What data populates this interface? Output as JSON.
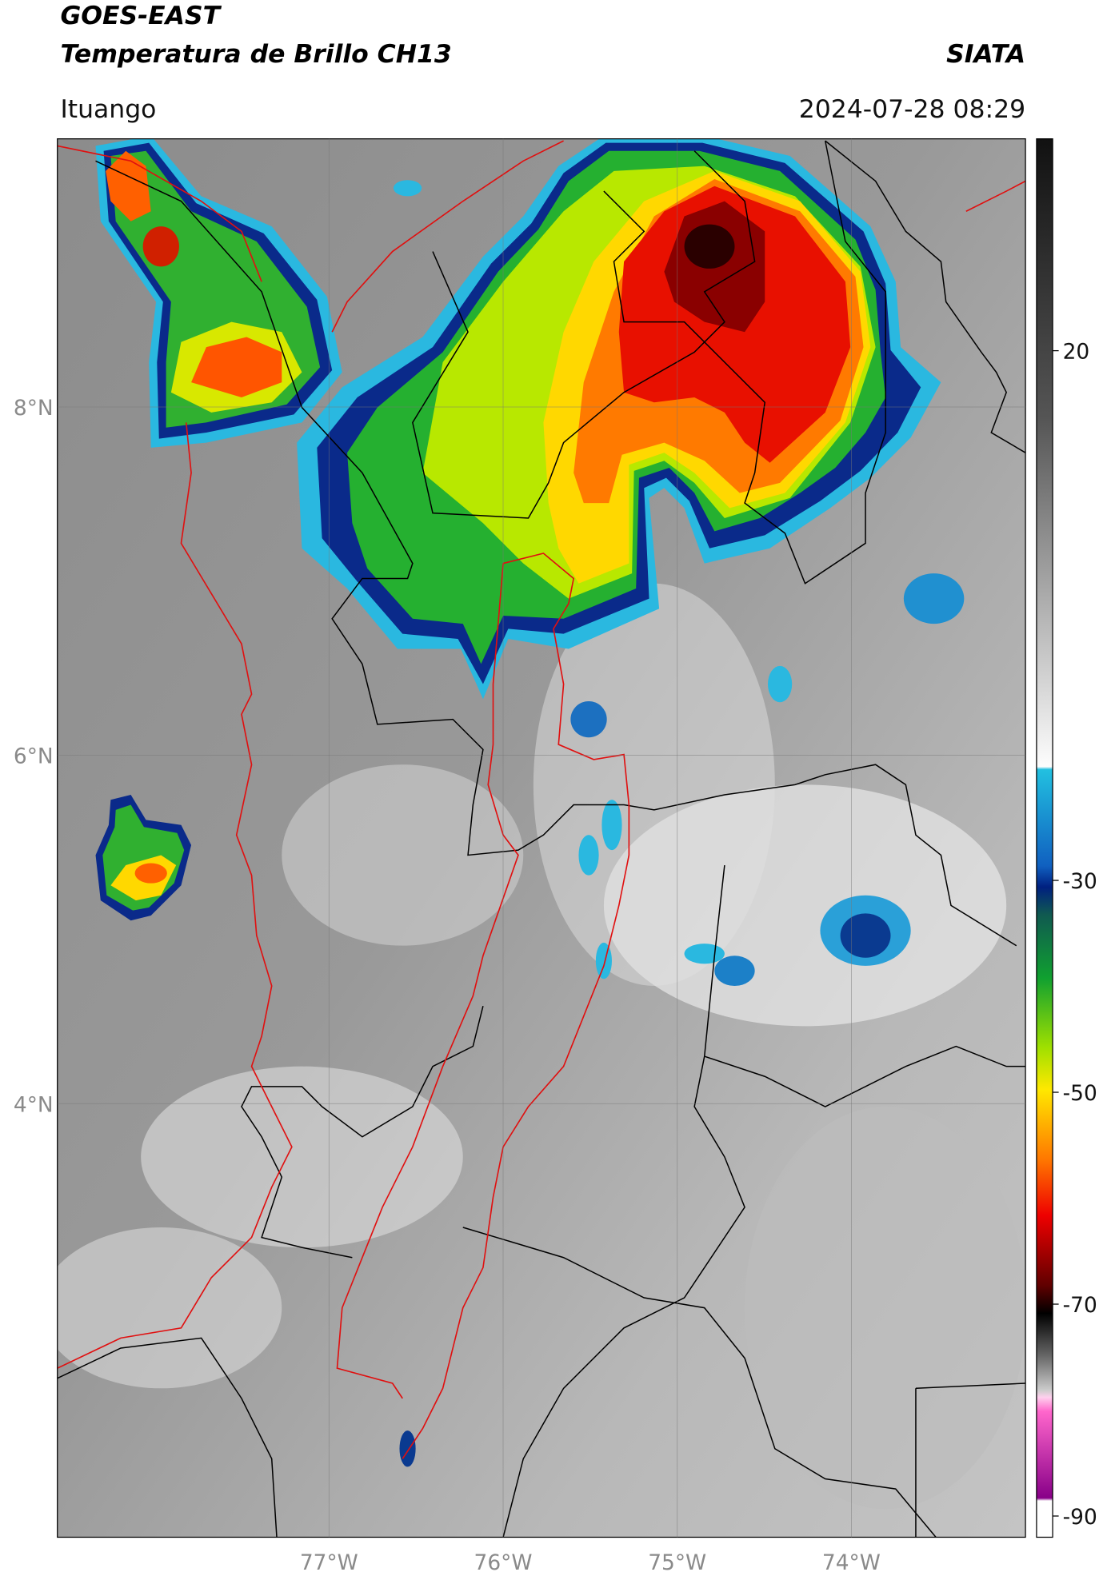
{
  "header": {
    "title": "GOES-EAST",
    "subtitle": "Temperatura de Brillo CH13",
    "brand": "SIATA",
    "location": "Ituango",
    "datetime": "2024-07-28 08:29"
  },
  "map": {
    "xlim": [
      -78.56,
      -73.0
    ],
    "ylim": [
      1.51,
      9.54
    ],
    "xticks": [
      {
        "value": -77,
        "label": "77°W"
      },
      {
        "value": -76,
        "label": "76°W"
      },
      {
        "value": -75,
        "label": "75°W"
      },
      {
        "value": -74,
        "label": "74°W"
      }
    ],
    "yticks": [
      {
        "value": 8,
        "label": "8°N"
      },
      {
        "value": 6,
        "label": "6°N"
      },
      {
        "value": 4,
        "label": "4°N"
      }
    ],
    "grid": true
  },
  "colorbar": {
    "lim": [
      -92,
      40
    ],
    "ticks": [
      20,
      -30,
      -50,
      -70,
      -90
    ]
  }
}
